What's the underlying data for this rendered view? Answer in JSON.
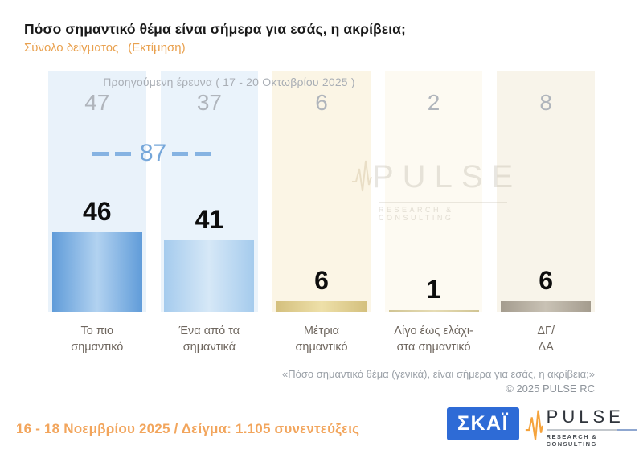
{
  "title": "Πόσο σημαντικό θέμα είναι σήμερα για εσάς, η ακρίβεια;",
  "subtitle": {
    "label": "Σύνολο δείγματος",
    "note": "(Εκτίμηση)"
  },
  "chart_data": {
    "type": "bar",
    "categories": [
      "Το πιο σημαντικό",
      "Ένα από τα σημαντικά",
      "Μέτρια σημαντικό",
      "Λίγο έως ελάχιστα σημαντικό",
      "ΔΓ/ΔΑ"
    ],
    "categories_lines": [
      [
        "Το πιο",
        "σημαντικό"
      ],
      [
        "Ένα από τα",
        "σημαντικά"
      ],
      [
        "Μέτρια",
        "σημαντικό"
      ],
      [
        "Λίγο έως ελάχι-",
        "στα σημαντικό"
      ],
      [
        "ΔΓ/",
        "ΔΑ"
      ]
    ],
    "series": [
      {
        "name": "16 - 18 Νοεμβρίου 2025",
        "values": [
          46,
          41,
          6,
          1,
          6
        ]
      },
      {
        "name": "Προηγούμενη έρευνα ( 17 - 20 Οκτωβρίου 2025 )",
        "values": [
          47,
          37,
          6,
          2,
          8
        ]
      }
    ],
    "annotation": {
      "value": 87
    },
    "ylim": [
      0,
      100
    ],
    "grid": false,
    "legend": false
  },
  "note": {
    "question": "«Πόσο σημαντικό θέμα (γενικά), είναι σήμερα για εσάς, η ακρίβεια;»",
    "copyright": "©  2025  PULSE RC"
  },
  "footer": {
    "text": "16 - 18 Νοεμβρίου 2025  /  Δείγμα:  1.105 συνεντεύξεις"
  },
  "logos": {
    "skai": {
      "text": "ΣΚΑΪ"
    },
    "pulse": {
      "text": "PULSE",
      "subtext": "RESEARCH & CONSULTING"
    }
  },
  "watermark": {
    "text": "PULSE",
    "subtext": "RESEARCH & CONSULTING"
  },
  "colors": {
    "title_text": "#191919",
    "accent_orange": "#e9a14f",
    "footer_orange": "#f2a55c",
    "prev_text": "#b0b5bc",
    "sum_blue": "#76a7da",
    "label_text": "#6f675f",
    "note_text": "#9aa0a7",
    "skai_blue": "#2e6bd6",
    "pulse_orange": "#f5a33c",
    "column_backgrounds": [
      "#e9f2fa",
      "#eaf3fb",
      "#fbf5e5",
      "#fdfaf2",
      "#f8f4ea"
    ],
    "bar_colors": [
      {
        "edge": "#609cd9",
        "center": "#b2d2f0"
      },
      {
        "edge": "#a5cbed",
        "center": "#d6e8f7"
      },
      {
        "edge": "#d4c07e",
        "center": "#eee0a9"
      },
      {
        "edge": "#d0c493",
        "center": "#e6dcb4"
      },
      {
        "edge": "#a49c8e",
        "center": "#c9c2b5"
      }
    ]
  }
}
